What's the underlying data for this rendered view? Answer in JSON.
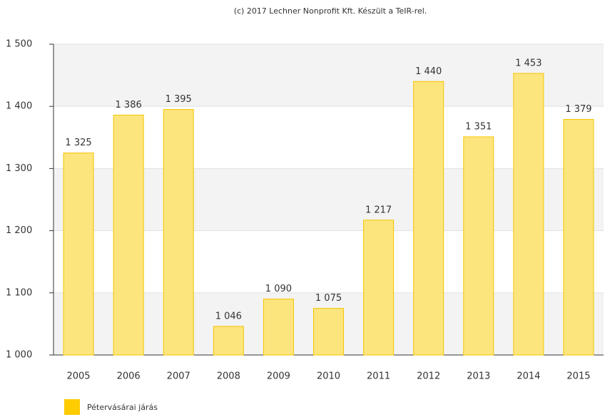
{
  "chart_data": {
    "type": "bar",
    "title": "(c) 2017 Lechner Nonprofit Kft. Készült a TeIR-rel.",
    "categories": [
      "2005",
      "2006",
      "2007",
      "2008",
      "2009",
      "2010",
      "2011",
      "2012",
      "2013",
      "2014",
      "2015"
    ],
    "series": [
      {
        "name": "Pétervásárai járás",
        "color": "#fde57e",
        "edge": "#f5c400",
        "legend_color": "#ffcc00",
        "values": [
          1325,
          1386,
          1395,
          1046,
          1090,
          1075,
          1217,
          1440,
          1351,
          1453,
          1379
        ],
        "value_labels": [
          "1 325",
          "1 386",
          "1 395",
          "1 046",
          "1 090",
          "1 075",
          "1 217",
          "1 440",
          "1 351",
          "1 453",
          "1 379"
        ]
      }
    ],
    "ylim": [
      1000,
      1500
    ],
    "yticks": [
      {
        "value": 1000,
        "label": "1 000"
      },
      {
        "value": 1100,
        "label": "1 100"
      },
      {
        "value": 1200,
        "label": "1 200"
      },
      {
        "value": 1300,
        "label": "1 300"
      },
      {
        "value": 1400,
        "label": "1 400"
      },
      {
        "value": 1500,
        "label": "1 500"
      }
    ],
    "grid": true
  }
}
